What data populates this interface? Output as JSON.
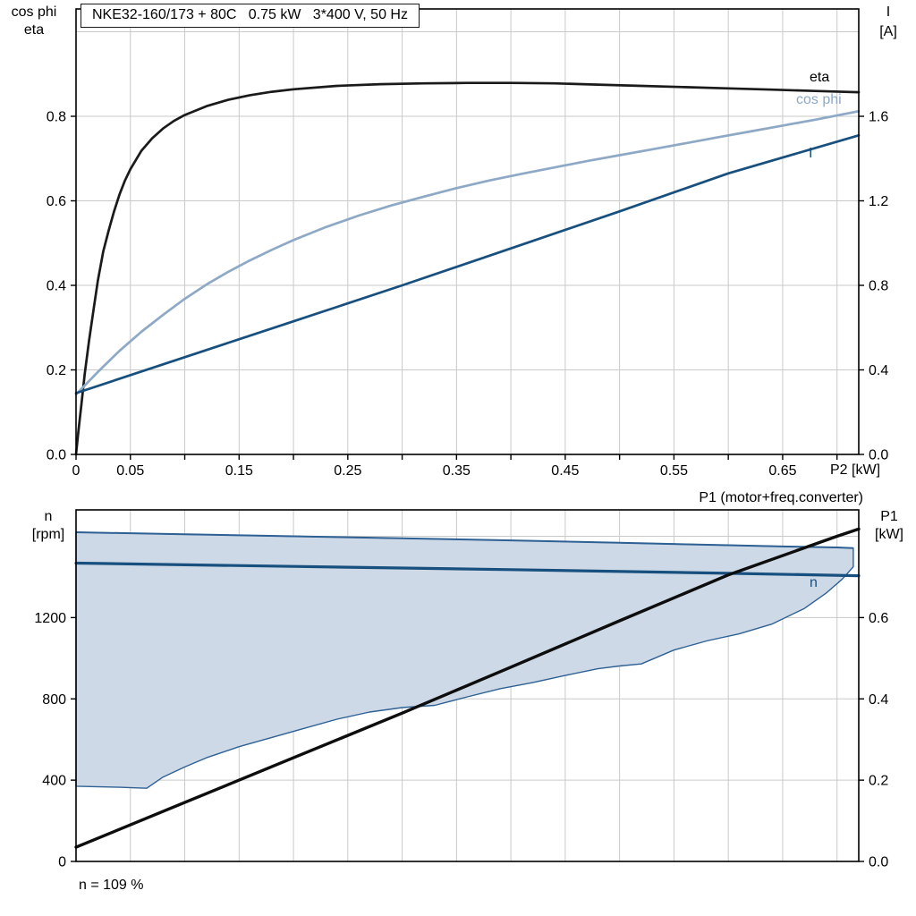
{
  "chart_data": [
    {
      "id": "motor",
      "type": "line",
      "title": "NKE32-160/173 + 80C   0.75 kW   3*400 V, 50 Hz",
      "x_label": "P2 [kW]",
      "x_range": [
        0,
        0.72
      ],
      "x_grid": [
        0.05,
        0.1,
        0.15,
        0.2,
        0.25,
        0.3,
        0.35,
        0.4,
        0.45,
        0.5,
        0.55,
        0.6,
        0.65,
        0.7
      ],
      "x_ticks": [
        0,
        0.05,
        0.1,
        0.15,
        0.2,
        0.25,
        0.3,
        0.35,
        0.4,
        0.45,
        0.5,
        0.55,
        0.6,
        0.65,
        0.7
      ],
      "x_labeled": [
        [
          0,
          "0"
        ],
        [
          0.05,
          "0.05"
        ],
        [
          0.15,
          "0.15"
        ],
        [
          0.25,
          "0.25"
        ],
        [
          0.35,
          "0.35"
        ],
        [
          0.45,
          "0.45"
        ],
        [
          0.55,
          "0.55"
        ],
        [
          0.65,
          "0.65"
        ]
      ],
      "y_grid": [
        0.2,
        0.4,
        0.6,
        0.8,
        1.0
      ],
      "y_left": {
        "label_lines": [
          "cos phi",
          "eta"
        ],
        "range": [
          0,
          1.054
        ],
        "ticks": [
          [
            0,
            "0.0"
          ],
          [
            0.2,
            "0.2"
          ],
          [
            0.4,
            "0.4"
          ],
          [
            0.6,
            "0.6"
          ],
          [
            0.8,
            "0.8"
          ]
        ]
      },
      "y_right": {
        "label_lines": [
          "I",
          "[A]"
        ],
        "unit_per_left": 2,
        "ticks": [
          [
            0,
            "0.0"
          ],
          [
            0.4,
            "0.4"
          ],
          [
            0.8,
            "0.8"
          ],
          [
            1.2,
            "1.2"
          ],
          [
            1.6,
            "1.6"
          ]
        ]
      },
      "series": [
        {
          "name": "eta",
          "color": "#1a1a1a",
          "width": 2.7,
          "axis": "left",
          "points": [
            [
              0,
              0
            ],
            [
              0.002,
              0.05
            ],
            [
              0.005,
              0.12
            ],
            [
              0.008,
              0.19
            ],
            [
              0.012,
              0.27
            ],
            [
              0.016,
              0.34
            ],
            [
              0.02,
              0.41
            ],
            [
              0.025,
              0.48
            ],
            [
              0.03,
              0.53
            ],
            [
              0.035,
              0.575
            ],
            [
              0.04,
              0.615
            ],
            [
              0.045,
              0.648
            ],
            [
              0.05,
              0.675
            ],
            [
              0.06,
              0.718
            ],
            [
              0.07,
              0.748
            ],
            [
              0.08,
              0.771
            ],
            [
              0.09,
              0.789
            ],
            [
              0.1,
              0.803
            ],
            [
              0.12,
              0.824
            ],
            [
              0.14,
              0.839
            ],
            [
              0.16,
              0.85
            ],
            [
              0.18,
              0.858
            ],
            [
              0.2,
              0.864
            ],
            [
              0.24,
              0.872
            ],
            [
              0.28,
              0.876
            ],
            [
              0.32,
              0.878
            ],
            [
              0.36,
              0.879
            ],
            [
              0.4,
              0.879
            ],
            [
              0.44,
              0.878
            ],
            [
              0.48,
              0.875
            ],
            [
              0.52,
              0.872
            ],
            [
              0.56,
              0.869
            ],
            [
              0.6,
              0.866
            ],
            [
              0.64,
              0.863
            ],
            [
              0.68,
              0.86
            ],
            [
              0.72,
              0.857
            ]
          ]
        },
        {
          "name": "cos phi",
          "color": "#8ea9c6",
          "width": 2.7,
          "axis": "left",
          "points": [
            [
              0,
              0.142
            ],
            [
              0.02,
              0.195
            ],
            [
              0.04,
              0.245
            ],
            [
              0.06,
              0.29
            ],
            [
              0.08,
              0.33
            ],
            [
              0.1,
              0.368
            ],
            [
              0.12,
              0.402
            ],
            [
              0.14,
              0.432
            ],
            [
              0.16,
              0.459
            ],
            [
              0.18,
              0.484
            ],
            [
              0.2,
              0.507
            ],
            [
              0.23,
              0.538
            ],
            [
              0.26,
              0.565
            ],
            [
              0.29,
              0.589
            ],
            [
              0.32,
              0.61
            ],
            [
              0.35,
              0.63
            ],
            [
              0.38,
              0.648
            ],
            [
              0.41,
              0.664
            ],
            [
              0.44,
              0.679
            ],
            [
              0.47,
              0.694
            ],
            [
              0.5,
              0.708
            ],
            [
              0.53,
              0.722
            ],
            [
              0.56,
              0.736
            ],
            [
              0.59,
              0.75
            ],
            [
              0.62,
              0.764
            ],
            [
              0.65,
              0.778
            ],
            [
              0.68,
              0.792
            ],
            [
              0.7,
              0.802
            ],
            [
              0.72,
              0.812
            ]
          ]
        },
        {
          "name": "I",
          "color": "#17507e",
          "width": 2.7,
          "axis": "right",
          "points": [
            [
              0,
              0.29
            ],
            [
              0.1,
              0.46
            ],
            [
              0.2,
              0.63
            ],
            [
              0.3,
              0.8
            ],
            [
              0.4,
              0.975
            ],
            [
              0.5,
              1.15
            ],
            [
              0.6,
              1.33
            ],
            [
              0.72,
              1.51
            ]
          ]
        }
      ]
    },
    {
      "id": "speed",
      "type": "line",
      "p1_label": "P1 (motor+freq.converter)",
      "footnote": "n = 109 %",
      "x_range": [
        0,
        0.72
      ],
      "x_grid": [
        0.05,
        0.1,
        0.15,
        0.2,
        0.25,
        0.3,
        0.35,
        0.4,
        0.45,
        0.5,
        0.55,
        0.6,
        0.65,
        0.7
      ],
      "x_ticks": [],
      "x_labeled": [],
      "y_grid": [
        400,
        800,
        1200,
        1600
      ],
      "y_left": {
        "label_lines": [
          "n",
          "[rpm]"
        ],
        "range": [
          0,
          1730
        ],
        "ticks": [
          [
            0,
            "0"
          ],
          [
            400,
            "400"
          ],
          [
            800,
            "800"
          ],
          [
            1200,
            "1200"
          ]
        ]
      },
      "y_right": {
        "label_lines": [
          "P1",
          "[kW]"
        ],
        "unit_per_left": 0.0005,
        "ticks": [
          [
            0,
            "0.0"
          ],
          [
            0.2,
            "0.2"
          ],
          [
            0.4,
            "0.4"
          ],
          [
            0.6,
            "0.6"
          ]
        ]
      },
      "band": {
        "fill": "#cdd9e7",
        "edge": "#2e6094",
        "edge_width": 1.4,
        "upper": [
          [
            0,
            1620
          ],
          [
            0.1,
            1610
          ],
          [
            0.2,
            1600
          ],
          [
            0.3,
            1590
          ],
          [
            0.4,
            1580
          ],
          [
            0.5,
            1568
          ],
          [
            0.6,
            1556
          ],
          [
            0.65,
            1550
          ],
          [
            0.7,
            1545
          ],
          [
            0.715,
            1542
          ]
        ],
        "lower": [
          [
            0,
            370
          ],
          [
            0.04,
            365
          ],
          [
            0.065,
            360
          ],
          [
            0.08,
            415
          ],
          [
            0.1,
            465
          ],
          [
            0.12,
            510
          ],
          [
            0.15,
            565
          ],
          [
            0.18,
            610
          ],
          [
            0.21,
            655
          ],
          [
            0.24,
            700
          ],
          [
            0.27,
            735
          ],
          [
            0.3,
            757
          ],
          [
            0.33,
            768
          ],
          [
            0.36,
            810
          ],
          [
            0.39,
            850
          ],
          [
            0.42,
            880
          ],
          [
            0.45,
            915
          ],
          [
            0.48,
            948
          ],
          [
            0.5,
            962
          ],
          [
            0.52,
            972
          ],
          [
            0.55,
            1040
          ],
          [
            0.58,
            1085
          ],
          [
            0.61,
            1120
          ],
          [
            0.64,
            1168
          ],
          [
            0.67,
            1245
          ],
          [
            0.69,
            1320
          ],
          [
            0.705,
            1390
          ],
          [
            0.715,
            1450
          ]
        ]
      },
      "series": [
        {
          "name": "n",
          "color": "#17507e",
          "width": 3.2,
          "axis": "left",
          "points": [
            [
              0,
              1468
            ],
            [
              0.2,
              1452
            ],
            [
              0.4,
              1436
            ],
            [
              0.6,
              1418
            ],
            [
              0.72,
              1406
            ]
          ]
        },
        {
          "name": "P1",
          "color": "#0d0d0d",
          "width": 3.4,
          "axis": "right",
          "points": [
            [
              0,
              0.035
            ],
            [
              0.1,
              0.145
            ],
            [
              0.2,
              0.255
            ],
            [
              0.3,
              0.365
            ],
            [
              0.4,
              0.478
            ],
            [
              0.5,
              0.592
            ],
            [
              0.6,
              0.705
            ],
            [
              0.7,
              0.8
            ],
            [
              0.72,
              0.818
            ]
          ]
        }
      ]
    }
  ]
}
